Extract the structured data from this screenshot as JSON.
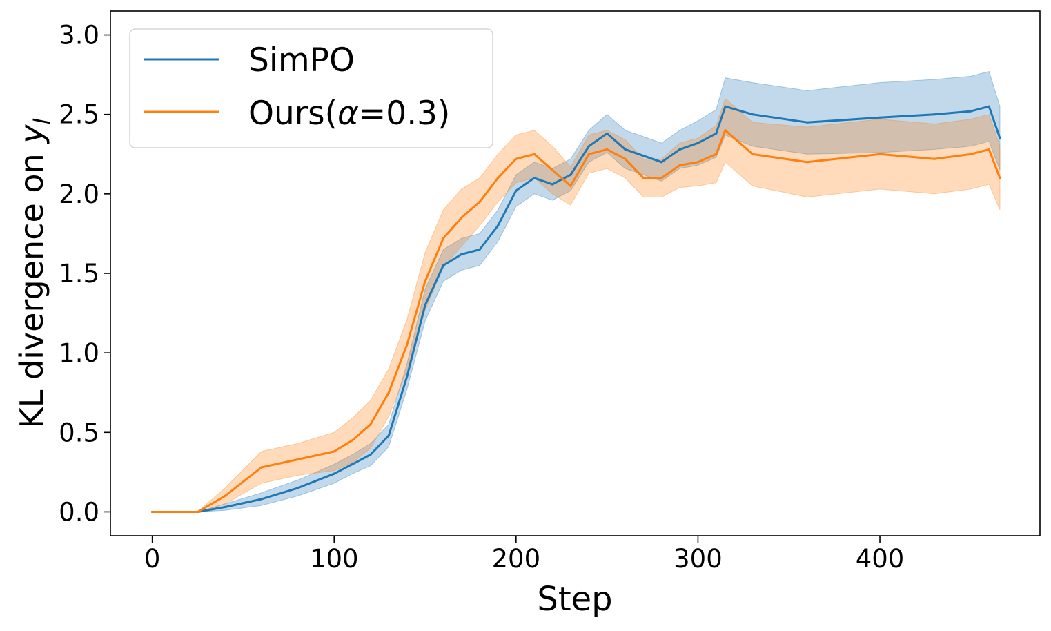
{
  "chart_data": {
    "type": "line",
    "title": "",
    "xlabel": "Step",
    "ylabel": "KL divergence on ",
    "ylabel_math": "y",
    "ylabel_sub": "l",
    "xlim": [
      -23,
      488
    ],
    "ylim": [
      -0.15,
      3.15
    ],
    "xticks": [
      0,
      100,
      200,
      300,
      400
    ],
    "xtick_labels": [
      "0",
      "100",
      "200",
      "300",
      "400"
    ],
    "yticks": [
      0.0,
      0.5,
      1.0,
      1.5,
      2.0,
      2.5,
      3.0
    ],
    "ytick_labels": [
      "0.0",
      "0.5",
      "1.0",
      "1.5",
      "2.0",
      "2.5",
      "3.0"
    ],
    "grid": false,
    "legend_position": "top-left",
    "x": [
      0,
      25,
      40,
      60,
      80,
      100,
      110,
      120,
      130,
      140,
      150,
      160,
      170,
      180,
      190,
      200,
      210,
      220,
      230,
      240,
      250,
      260,
      270,
      280,
      290,
      300,
      310,
      315,
      330,
      360,
      400,
      430,
      450,
      460,
      466
    ],
    "series": [
      {
        "name": "SimPO",
        "legend_label": "SimPO",
        "color": "#1f77b4",
        "values": [
          0.0,
          0.0,
          0.03,
          0.08,
          0.15,
          0.24,
          0.3,
          0.36,
          0.48,
          0.85,
          1.3,
          1.55,
          1.62,
          1.65,
          1.8,
          2.02,
          2.1,
          2.06,
          2.12,
          2.3,
          2.38,
          2.28,
          2.24,
          2.2,
          2.28,
          2.32,
          2.38,
          2.55,
          2.5,
          2.45,
          2.48,
          2.5,
          2.52,
          2.55,
          2.35
        ],
        "band": [
          0.0,
          0.0,
          0.02,
          0.04,
          0.05,
          0.06,
          0.06,
          0.07,
          0.07,
          0.08,
          0.1,
          0.1,
          0.1,
          0.1,
          0.1,
          0.1,
          0.1,
          0.1,
          0.1,
          0.1,
          0.12,
          0.12,
          0.12,
          0.12,
          0.12,
          0.14,
          0.15,
          0.18,
          0.2,
          0.2,
          0.22,
          0.22,
          0.22,
          0.22,
          0.2
        ]
      },
      {
        "name": "Ours(α=0.3)",
        "legend_prefix": "Ours(",
        "legend_math": "α",
        "legend_suffix": "=0.3)",
        "color": "#ff7f0e",
        "values": [
          0.0,
          0.0,
          0.1,
          0.28,
          0.33,
          0.38,
          0.45,
          0.55,
          0.75,
          1.05,
          1.45,
          1.72,
          1.85,
          1.95,
          2.1,
          2.22,
          2.25,
          2.15,
          2.05,
          2.25,
          2.28,
          2.22,
          2.1,
          2.1,
          2.18,
          2.2,
          2.25,
          2.4,
          2.25,
          2.2,
          2.25,
          2.22,
          2.25,
          2.28,
          2.1
        ],
        "band": [
          0.0,
          0.0,
          0.05,
          0.1,
          0.1,
          0.12,
          0.14,
          0.15,
          0.15,
          0.16,
          0.18,
          0.18,
          0.18,
          0.15,
          0.15,
          0.15,
          0.15,
          0.15,
          0.12,
          0.12,
          0.12,
          0.12,
          0.12,
          0.12,
          0.14,
          0.15,
          0.18,
          0.2,
          0.2,
          0.22,
          0.22,
          0.22,
          0.22,
          0.22,
          0.2
        ]
      }
    ]
  }
}
